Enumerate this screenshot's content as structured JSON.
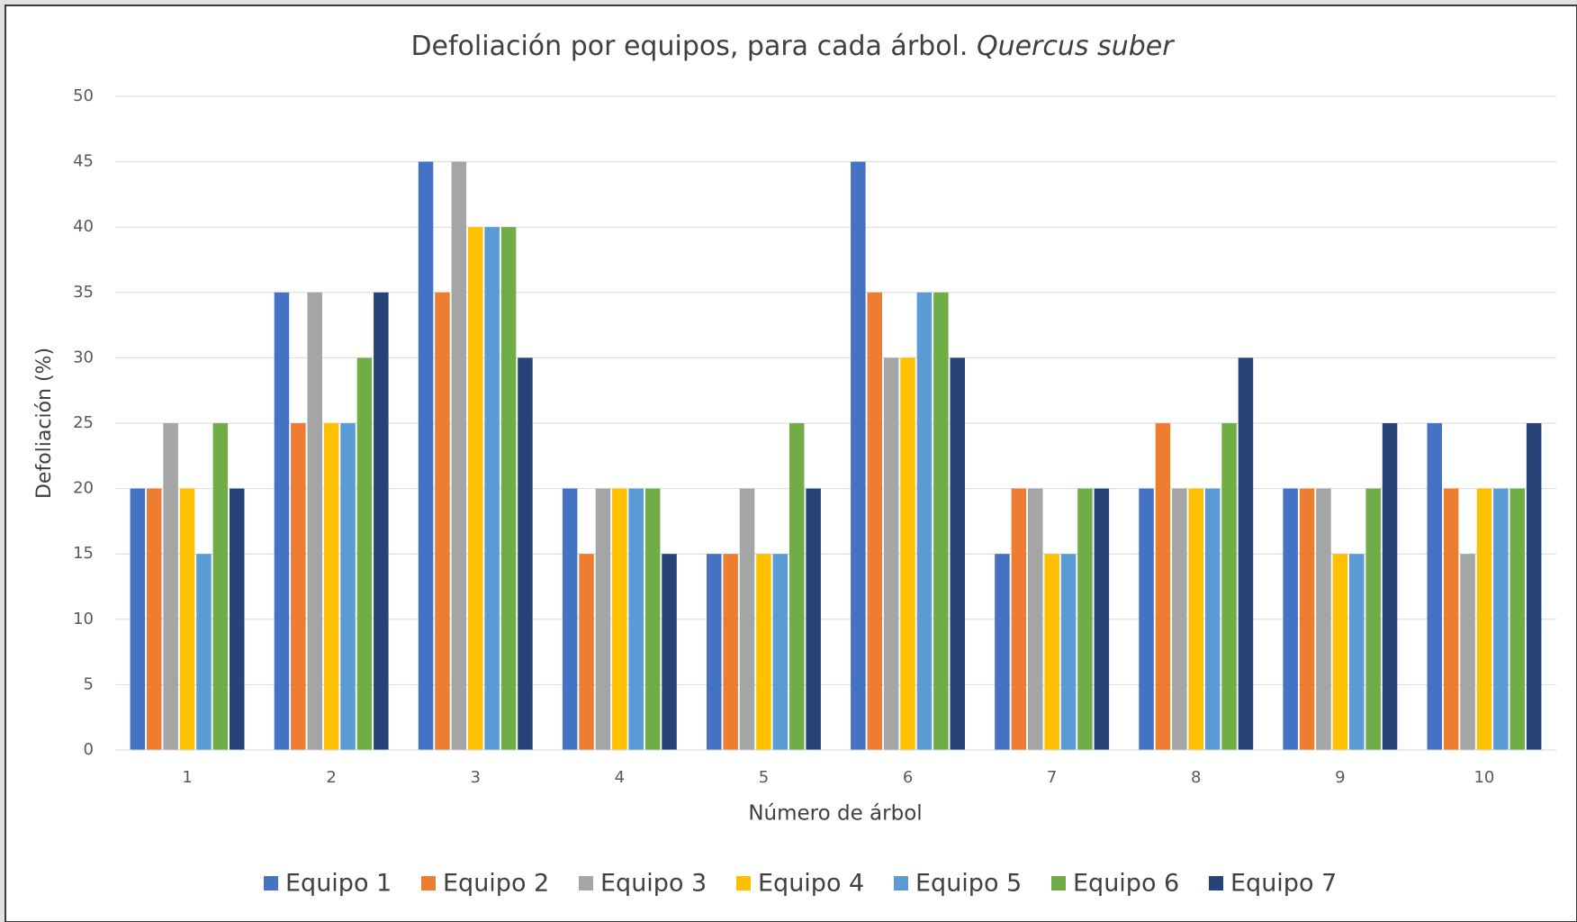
{
  "chart_data": {
    "type": "bar",
    "title": [
      "Defoliación por equipos, para cada árbol.",
      "Quercus suber"
    ],
    "xlabel": "Número de árbol",
    "ylabel": "Defoliación (%)",
    "categories": [
      1,
      2,
      3,
      4,
      5,
      6,
      7,
      8,
      9,
      10
    ],
    "series": [
      {
        "name": "Equipo 1",
        "color": "#4472c4",
        "values": [
          20,
          35,
          45,
          20,
          15,
          45,
          15,
          20,
          20,
          25
        ]
      },
      {
        "name": "Equipo 2",
        "color": "#ed7d31",
        "values": [
          20,
          25,
          35,
          15,
          15,
          35,
          20,
          25,
          20,
          20
        ]
      },
      {
        "name": "Equipo 3",
        "color": "#a5a5a5",
        "values": [
          25,
          35,
          45,
          20,
          20,
          30,
          20,
          20,
          20,
          15
        ]
      },
      {
        "name": "Equipo 4",
        "color": "#ffc000",
        "values": [
          20,
          25,
          40,
          20,
          15,
          30,
          15,
          20,
          15,
          20
        ]
      },
      {
        "name": "Equipo 5",
        "color": "#5b9bd5",
        "values": [
          15,
          25,
          40,
          20,
          15,
          35,
          15,
          20,
          15,
          20
        ]
      },
      {
        "name": "Equipo 6",
        "color": "#70ad47",
        "values": [
          25,
          30,
          40,
          20,
          25,
          35,
          20,
          25,
          20,
          20
        ]
      },
      {
        "name": "Equipo 7",
        "color": "#264478",
        "values": [
          20,
          35,
          30,
          15,
          20,
          30,
          20,
          30,
          25,
          25
        ]
      }
    ],
    "ylim": [
      0,
      50
    ],
    "yticks": [
      0,
      5,
      10,
      15,
      20,
      25,
      30,
      35,
      40,
      45,
      50
    ],
    "grid": true,
    "legend": "bottom"
  }
}
